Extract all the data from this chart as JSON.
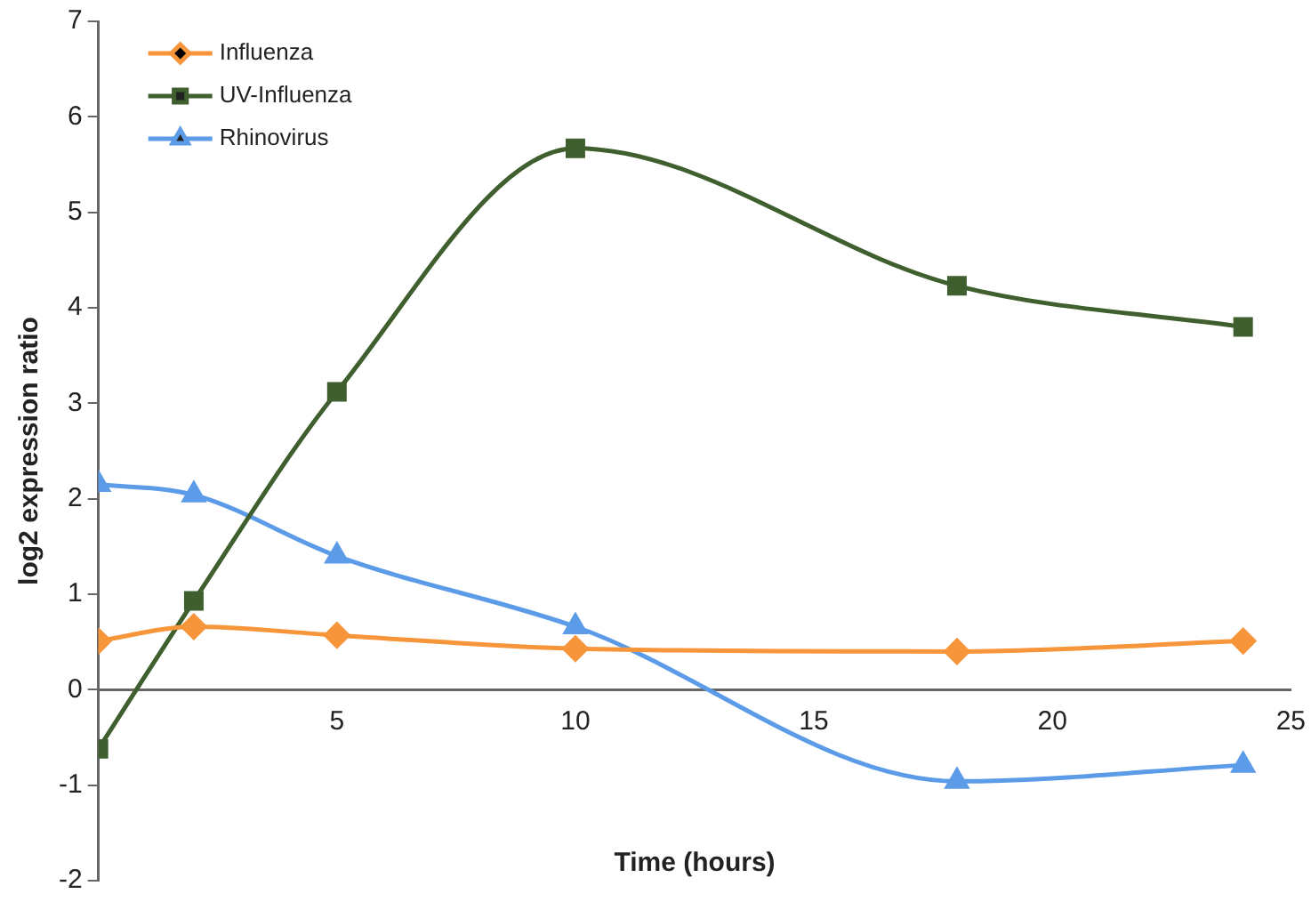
{
  "chart_data": {
    "type": "line",
    "xlabel": "Time (hours)",
    "ylabel": "log2 expression ratio",
    "xlim": [
      0,
      25
    ],
    "xticks": [
      5,
      10,
      15,
      20,
      25
    ],
    "ylim": [
      -2,
      7
    ],
    "yticks": [
      -2,
      -1,
      0,
      1,
      2,
      3,
      4,
      5,
      6,
      7
    ],
    "grid": false,
    "legend": "top left",
    "line_style": "solid",
    "series": [
      {
        "name": "Influenza",
        "color": "#f7953b",
        "marker": "diamond",
        "x": [
          0,
          2,
          5,
          10,
          18,
          24
        ],
        "values": [
          0.51,
          0.66,
          0.57,
          0.43,
          0.4,
          0.51
        ]
      },
      {
        "name": "UV-Influenza",
        "color": "#3f5f2f",
        "marker": "square",
        "x": [
          0,
          2,
          5,
          10,
          18,
          24
        ],
        "values": [
          -0.62,
          0.93,
          3.12,
          5.67,
          4.23,
          3.8
        ]
      },
      {
        "name": "Rhinovirus",
        "color": "#5b9be8",
        "marker": "triangle",
        "x": [
          0,
          2,
          5,
          10,
          18,
          24
        ],
        "values": [
          2.15,
          2.04,
          1.4,
          0.66,
          -0.96,
          -0.79
        ]
      }
    ]
  }
}
